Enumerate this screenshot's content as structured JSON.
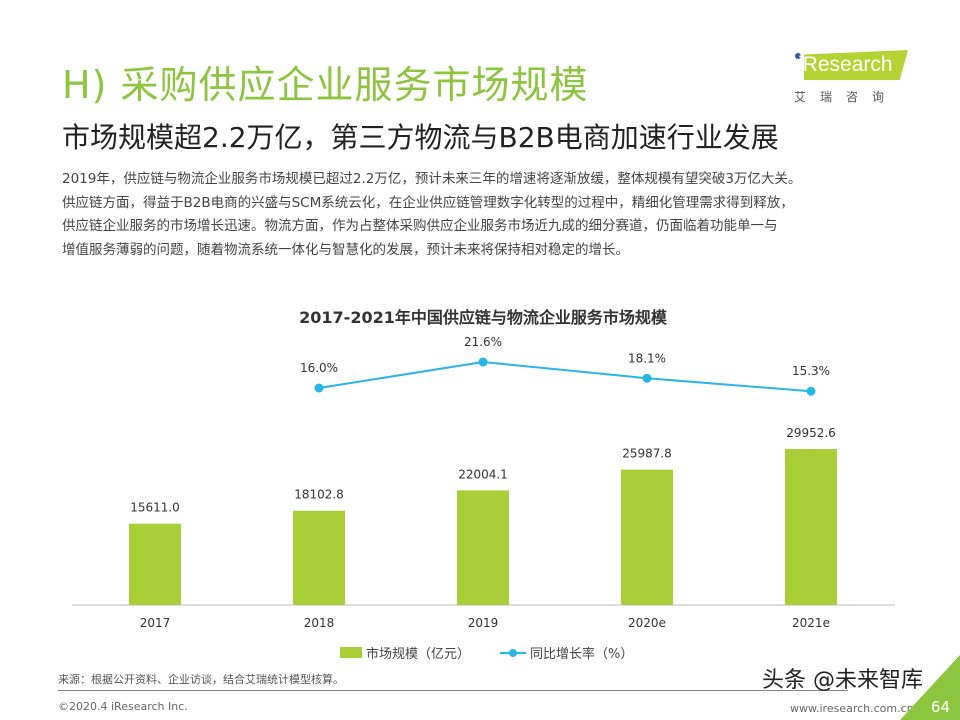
{
  "header": {
    "title": "H) 采购供应企业服务市场规模",
    "subtitle": "市场规模超2.2万亿，第三方物流与B2B电商加速行业发展"
  },
  "logo": {
    "text": "iResearch",
    "cn": "艾瑞咨询"
  },
  "paragraph": [
    "2019年，供应链与物流企业服务市场规模已超过2.2万亿，预计未来三年的增速将逐渐放缓，整体规模有望突破3万亿大关。",
    "供应链方面，得益于B2B电商的兴盛与SCM系统云化，在企业供应链管理数字化转型的过程中，精细化管理需求得到释放，",
    "供应链企业服务的市场增长迅速。物流方面，作为占整体采购供应企业服务市场近九成的细分赛道，仍面临着功能单一与",
    "增值服务薄弱的问题，随着物流系统一体化与智慧化的发展，预计未来将保持相对稳定的增长。"
  ],
  "chart_data": {
    "type": "bar+line",
    "title": "2017-2021年中国供应链与物流企业服务市场规模",
    "categories": [
      "2017",
      "2018",
      "2019",
      "2020e",
      "2021e"
    ],
    "series": [
      {
        "name": "市场规模（亿元）",
        "type": "bar",
        "values": [
          15611.0,
          18102.8,
          22004.1,
          25987.8,
          29952.6
        ],
        "labels": [
          "15611.0",
          "18102.8",
          "22004.1",
          "25987.8",
          "29952.6"
        ],
        "color": "#a9cf38"
      },
      {
        "name": "同比增长率（%）",
        "type": "line",
        "values": [
          null,
          16.0,
          21.6,
          18.1,
          15.3
        ],
        "labels": [
          "",
          "16.0%",
          "21.6%",
          "18.1%",
          "15.3%"
        ],
        "color": "#28b5e8"
      }
    ],
    "legend": "bottom"
  },
  "footer": {
    "source": "来源：根据公开资料、企业访谈，结合艾瑞统计模型核算。",
    "copyright": "©2020.4 iResearch Inc.",
    "website": "www.iresearch.com.cn",
    "page": "64",
    "watermark": "头条 @未来智库"
  }
}
